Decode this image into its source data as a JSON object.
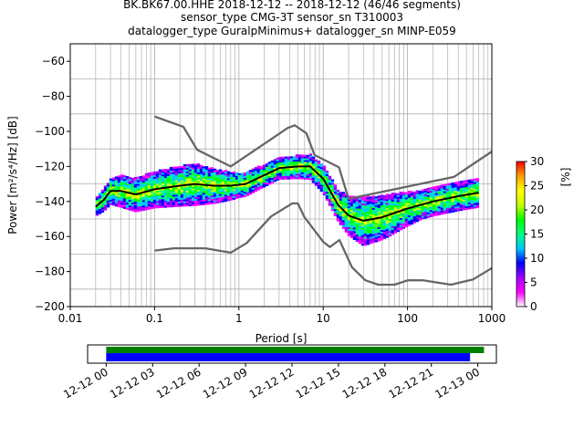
{
  "title_lines": [
    "BK.BK67.00.HHE   2018-12-12 -- 2018-12-12  (46/46 segments)",
    "sensor_type CMG-3T sensor_sn T310003",
    "datalogger_type GuralpMinimus+ datalogger_sn MINP-E059"
  ],
  "chart_data": {
    "type": "heatmap",
    "xlabel": "Period [s]",
    "ylabel": "Power [m²/s⁴/Hz] [dB]",
    "xscale": "log",
    "xlim": [
      0.01,
      1000
    ],
    "ylim": [
      -200,
      -50
    ],
    "x_ticks": [
      "0.01",
      "0.1",
      "1",
      "10",
      "100",
      "1000"
    ],
    "y_ticks": [
      "−60",
      "−80",
      "−100",
      "−120",
      "−140",
      "−160",
      "−180",
      "−200"
    ],
    "grid": true,
    "colorbar": {
      "label": "[%]",
      "range": [
        0,
        30
      ],
      "ticks": [
        "0",
        "5",
        "10",
        "15",
        "20",
        "25",
        "30"
      ],
      "colormap": [
        "#ffffff",
        "#ff00ff",
        "#a000ff",
        "#0000ff",
        "#00c8ff",
        "#00ff80",
        "#00ff00",
        "#c8ff00",
        "#ffff00",
        "#ffa000",
        "#ff0000"
      ]
    },
    "series": [
      {
        "role": "high noise model",
        "color": "#666666",
        "points": [
          [
            0.1,
            -91.5
          ],
          [
            0.22,
            -97.4
          ],
          [
            0.32,
            -110.5
          ],
          [
            0.8,
            -120
          ],
          [
            3.8,
            -98
          ],
          [
            4.6,
            -96.5
          ],
          [
            6.3,
            -101
          ],
          [
            7.9,
            -113.5
          ],
          [
            15.4,
            -120.5
          ],
          [
            20,
            -138.5
          ],
          [
            354.8,
            -126
          ],
          [
            1000,
            -111.5
          ]
        ]
      },
      {
        "role": "low noise model",
        "color": "#666666",
        "points": [
          [
            0.1,
            -168
          ],
          [
            0.17,
            -166.7
          ],
          [
            0.4,
            -166.7
          ],
          [
            0.8,
            -169.2
          ],
          [
            1.24,
            -163.7
          ],
          [
            2.4,
            -148.6
          ],
          [
            4.3,
            -141.1
          ],
          [
            5,
            -141.1
          ],
          [
            6,
            -149
          ],
          [
            10,
            -163
          ],
          [
            12,
            -166
          ],
          [
            15.6,
            -162
          ],
          [
            21.9,
            -177.5
          ],
          [
            31.6,
            -185
          ],
          [
            45,
            -187.5
          ],
          [
            70,
            -187.5
          ],
          [
            101,
            -185
          ],
          [
            154,
            -185
          ],
          [
            328,
            -187.5
          ],
          [
            600,
            -184.5
          ],
          [
            1000,
            -178
          ]
        ]
      },
      {
        "role": "mode",
        "color": "#000000",
        "points": [
          [
            0.02,
            -143
          ],
          [
            0.025,
            -139
          ],
          [
            0.03,
            -134
          ],
          [
            0.04,
            -134
          ],
          [
            0.06,
            -136
          ],
          [
            0.1,
            -133
          ],
          [
            0.2,
            -131
          ],
          [
            0.3,
            -130
          ],
          [
            0.5,
            -131
          ],
          [
            0.8,
            -131
          ],
          [
            1.2,
            -130
          ],
          [
            2,
            -125
          ],
          [
            3,
            -121
          ],
          [
            5,
            -120
          ],
          [
            7,
            -120
          ],
          [
            10,
            -127
          ],
          [
            15,
            -142
          ],
          [
            20,
            -148
          ],
          [
            30,
            -151
          ],
          [
            50,
            -149
          ],
          [
            100,
            -144
          ],
          [
            200,
            -140
          ],
          [
            400,
            -137
          ],
          [
            700,
            -135
          ]
        ]
      }
    ],
    "band_width_db": [
      [
        0.02,
        5
      ],
      [
        0.04,
        9
      ],
      [
        0.3,
        12
      ],
      [
        1,
        7
      ],
      [
        3,
        6
      ],
      [
        7,
        7
      ],
      [
        15,
        9
      ],
      [
        30,
        14
      ],
      [
        60,
        12
      ],
      [
        150,
        8
      ],
      [
        700,
        8
      ]
    ]
  },
  "timeline": {
    "tick_labels": [
      "12-12 00",
      "12-12 03",
      "12-12 06",
      "12-12 09",
      "12-12 12",
      "12-12 15",
      "12-12 18",
      "12-12 21",
      "12-13 00"
    ],
    "tick_hours": [
      0,
      3,
      6,
      9,
      12,
      15,
      18,
      21,
      24
    ],
    "range_hours": [
      -1.2,
      25.2
    ],
    "bars": [
      {
        "role": "data",
        "color": "#008000",
        "start_hours": 0,
        "end_hours": 24.4
      },
      {
        "role": "used",
        "color": "#0000ff",
        "start_hours": 0,
        "end_hours": 23.5
      }
    ]
  }
}
